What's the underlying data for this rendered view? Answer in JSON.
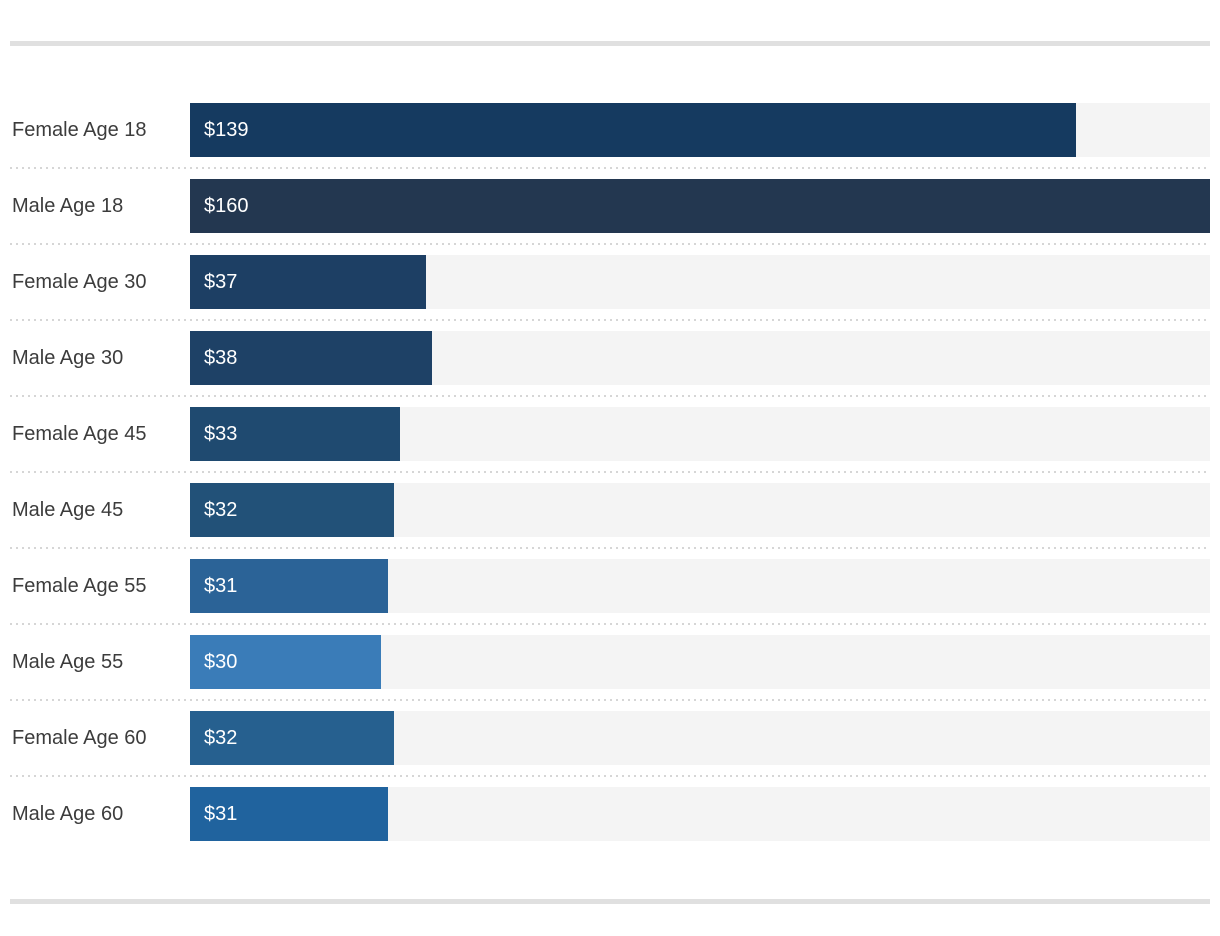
{
  "chart_data": {
    "type": "bar",
    "orientation": "horizontal",
    "title": "",
    "xlabel": "",
    "ylabel": "",
    "xlim": [
      0,
      160
    ],
    "grid": false,
    "legend": "none",
    "categories": [
      "Female Age 18",
      "Male Age 18",
      "Female Age 30",
      "Male Age 30",
      "Female Age 45",
      "Male Age 45",
      "Female Age 55",
      "Male Age 55",
      "Female Age 60",
      "Male Age 60"
    ],
    "values": [
      139,
      160,
      37,
      38,
      33,
      32,
      31,
      30,
      32,
      31
    ],
    "value_labels": [
      "$139",
      "$160",
      "$37",
      "$38",
      "$33",
      "$32",
      "$31",
      "$30",
      "$32",
      "$31"
    ],
    "bar_colors": [
      "#153a60",
      "#233750",
      "#1d3f64",
      "#1e4166",
      "#1f4a70",
      "#225178",
      "#2b6397",
      "#3a7cb8",
      "#26608f",
      "#20639e"
    ],
    "track_color": "#f4f4f4",
    "label_color": "#3c3c3c",
    "value_label_color": "#ffffff",
    "separator_color": "#d6d6d6",
    "rule_color": "#e0e0e0"
  }
}
